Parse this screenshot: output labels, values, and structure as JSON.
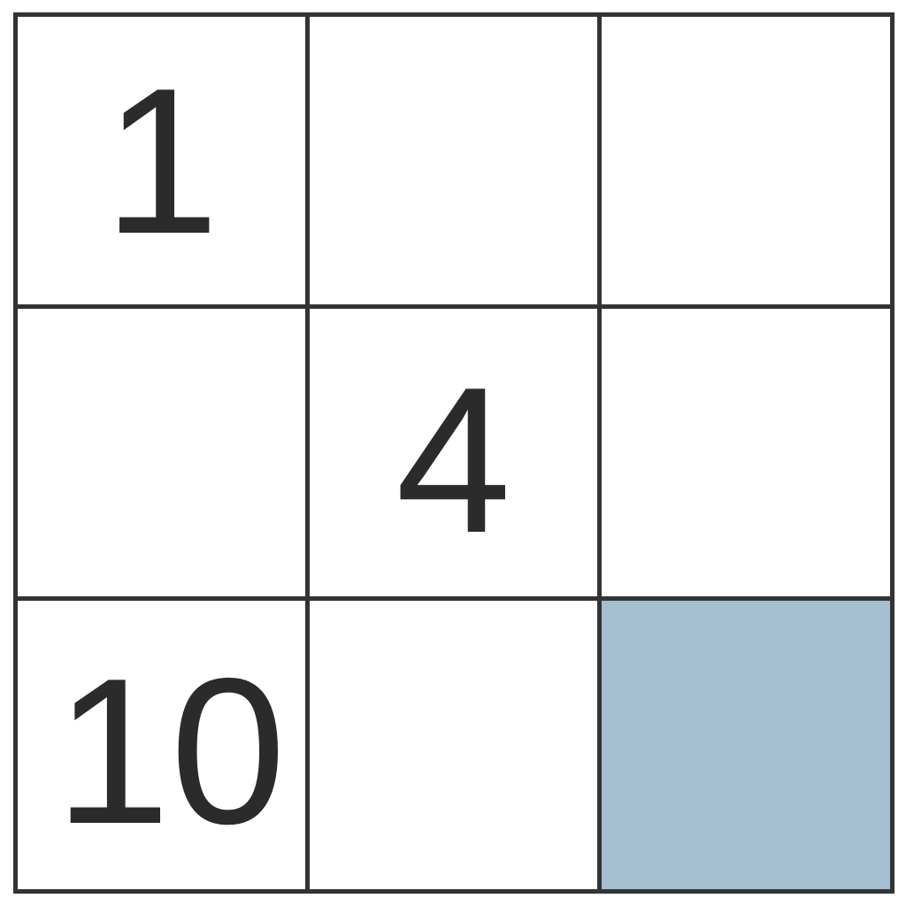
{
  "grid": {
    "rows": 3,
    "cols": 3,
    "cells": [
      {
        "value": "1",
        "shaded": false
      },
      {
        "value": "",
        "shaded": false
      },
      {
        "value": "",
        "shaded": false
      },
      {
        "value": "",
        "shaded": false
      },
      {
        "value": "4",
        "shaded": false
      },
      {
        "value": "",
        "shaded": false
      },
      {
        "value": "10",
        "shaded": false
      },
      {
        "value": "",
        "shaded": false
      },
      {
        "value": "",
        "shaded": true
      }
    ],
    "shade_color": "#a3bfd1",
    "line_color": "#333333"
  }
}
